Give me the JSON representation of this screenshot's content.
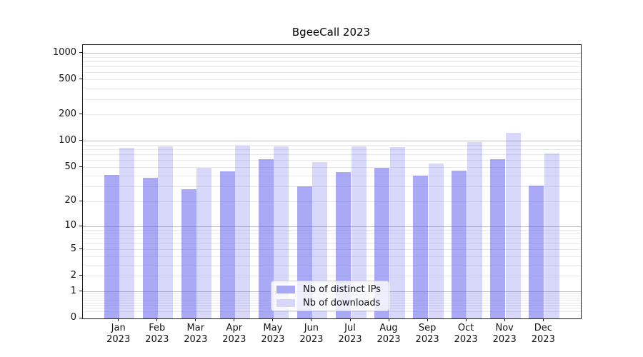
{
  "title": "BgeeCall 2023",
  "chart_data": {
    "type": "bar",
    "title": "BgeeCall 2023",
    "categories": [
      "Jan 2023",
      "Feb 2023",
      "Mar 2023",
      "Apr 2023",
      "May 2023",
      "Jun 2023",
      "Jul 2023",
      "Aug 2023",
      "Sep 2023",
      "Oct 2023",
      "Nov 2023",
      "Dec 2023"
    ],
    "series": [
      {
        "name": "Nb of distinct IPs",
        "values": [
          41,
          38,
          28,
          45,
          62,
          30,
          44,
          50,
          40,
          46,
          62,
          31
        ]
      },
      {
        "name": "Nb of downloads",
        "values": [
          84,
          88,
          50,
          89,
          87,
          58,
          88,
          86,
          56,
          98,
          125,
          72
        ]
      }
    ],
    "xlabel": "",
    "ylabel": "",
    "yscale": "symlog (position proportional to log(1+value))",
    "yticks": [
      1000,
      500,
      200,
      100,
      50,
      20,
      10,
      5,
      2,
      1,
      0
    ],
    "ytick_major_gridlines": [
      1,
      10,
      100,
      1000
    ],
    "ylim": [
      0,
      1240
    ],
    "grid": true,
    "legend_position": "lower center"
  },
  "legend": {
    "items": [
      {
        "label": "Nb of distinct IPs"
      },
      {
        "label": "Nb of downloads"
      }
    ]
  },
  "colors": {
    "bar_distinct_ips": "rgba(90,90,235,0.52)",
    "bar_downloads": "rgba(90,90,235,0.24)",
    "bar_distinct_ips_solid": "#a9a9f4",
    "bar_downloads_solid": "#d7d7fa",
    "grid_major": "#bdbdbd",
    "grid_minor": "#e9e9e9",
    "axis": "#1a1a1a",
    "text": "#111111",
    "legend_border": "#cccccc"
  }
}
